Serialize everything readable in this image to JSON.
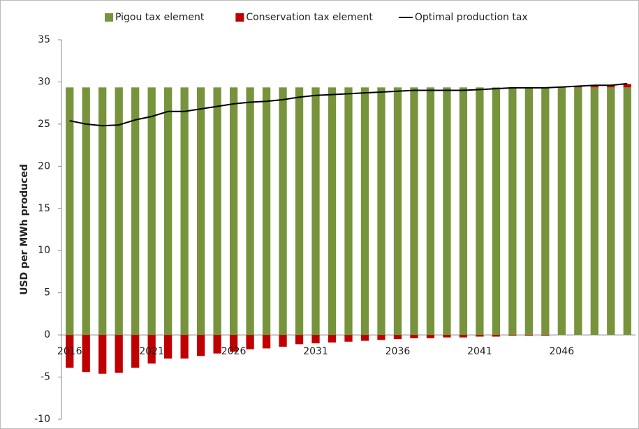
{
  "chart_data": {
    "type": "stacked-bar-line",
    "y_label": "USD per MWh produced",
    "categories": [
      "2016",
      null,
      null,
      null,
      null,
      "2021",
      null,
      null,
      null,
      null,
      "2026",
      null,
      null,
      null,
      null,
      "2031",
      null,
      null,
      null,
      null,
      "2036",
      null,
      null,
      null,
      null,
      "2041",
      null,
      null,
      null,
      null,
      "2046",
      null,
      null,
      null,
      null
    ],
    "series": [
      {
        "name": "Pigou tax element",
        "color": "#77933c",
        "kind": "bar",
        "values": [
          29.35,
          29.35,
          29.35,
          29.35,
          29.35,
          29.35,
          29.35,
          29.35,
          29.35,
          29.35,
          29.35,
          29.35,
          29.35,
          29.35,
          29.35,
          29.35,
          29.35,
          29.35,
          29.35,
          29.35,
          29.35,
          29.35,
          29.35,
          29.35,
          29.35,
          29.35,
          29.35,
          29.35,
          29.35,
          29.35,
          29.35,
          29.35,
          29.35,
          29.35,
          29.35
        ]
      },
      {
        "name": "Conservation tax element",
        "color": "#c00000",
        "kind": "bar",
        "values": [
          -3.9,
          -4.4,
          -4.6,
          -4.5,
          -3.9,
          -3.4,
          -2.8,
          -2.8,
          -2.5,
          -2.2,
          -2.0,
          -1.7,
          -1.6,
          -1.4,
          -1.1,
          -1.0,
          -0.9,
          -0.8,
          -0.7,
          -0.6,
          -0.5,
          -0.4,
          -0.4,
          -0.3,
          -0.3,
          -0.2,
          -0.2,
          -0.1,
          -0.1,
          -0.1,
          0.0,
          0.1,
          0.2,
          0.3,
          0.4
        ]
      },
      {
        "name": "Optimal production tax",
        "color": "#000000",
        "kind": "line",
        "values": [
          25.4,
          25.0,
          24.8,
          24.9,
          25.5,
          25.9,
          26.5,
          26.5,
          26.8,
          27.1,
          27.4,
          27.6,
          27.7,
          27.9,
          28.2,
          28.4,
          28.5,
          28.6,
          28.7,
          28.8,
          28.9,
          29.0,
          29.0,
          29.0,
          29.0,
          29.1,
          29.2,
          29.3,
          29.3,
          29.3,
          29.4,
          29.5,
          29.6,
          29.6,
          29.8
        ]
      }
    ],
    "ylim": [
      -10,
      35
    ],
    "yticks": [
      -10,
      -5,
      0,
      5,
      10,
      15,
      20,
      25,
      30,
      35
    ],
    "legend": "top"
  }
}
